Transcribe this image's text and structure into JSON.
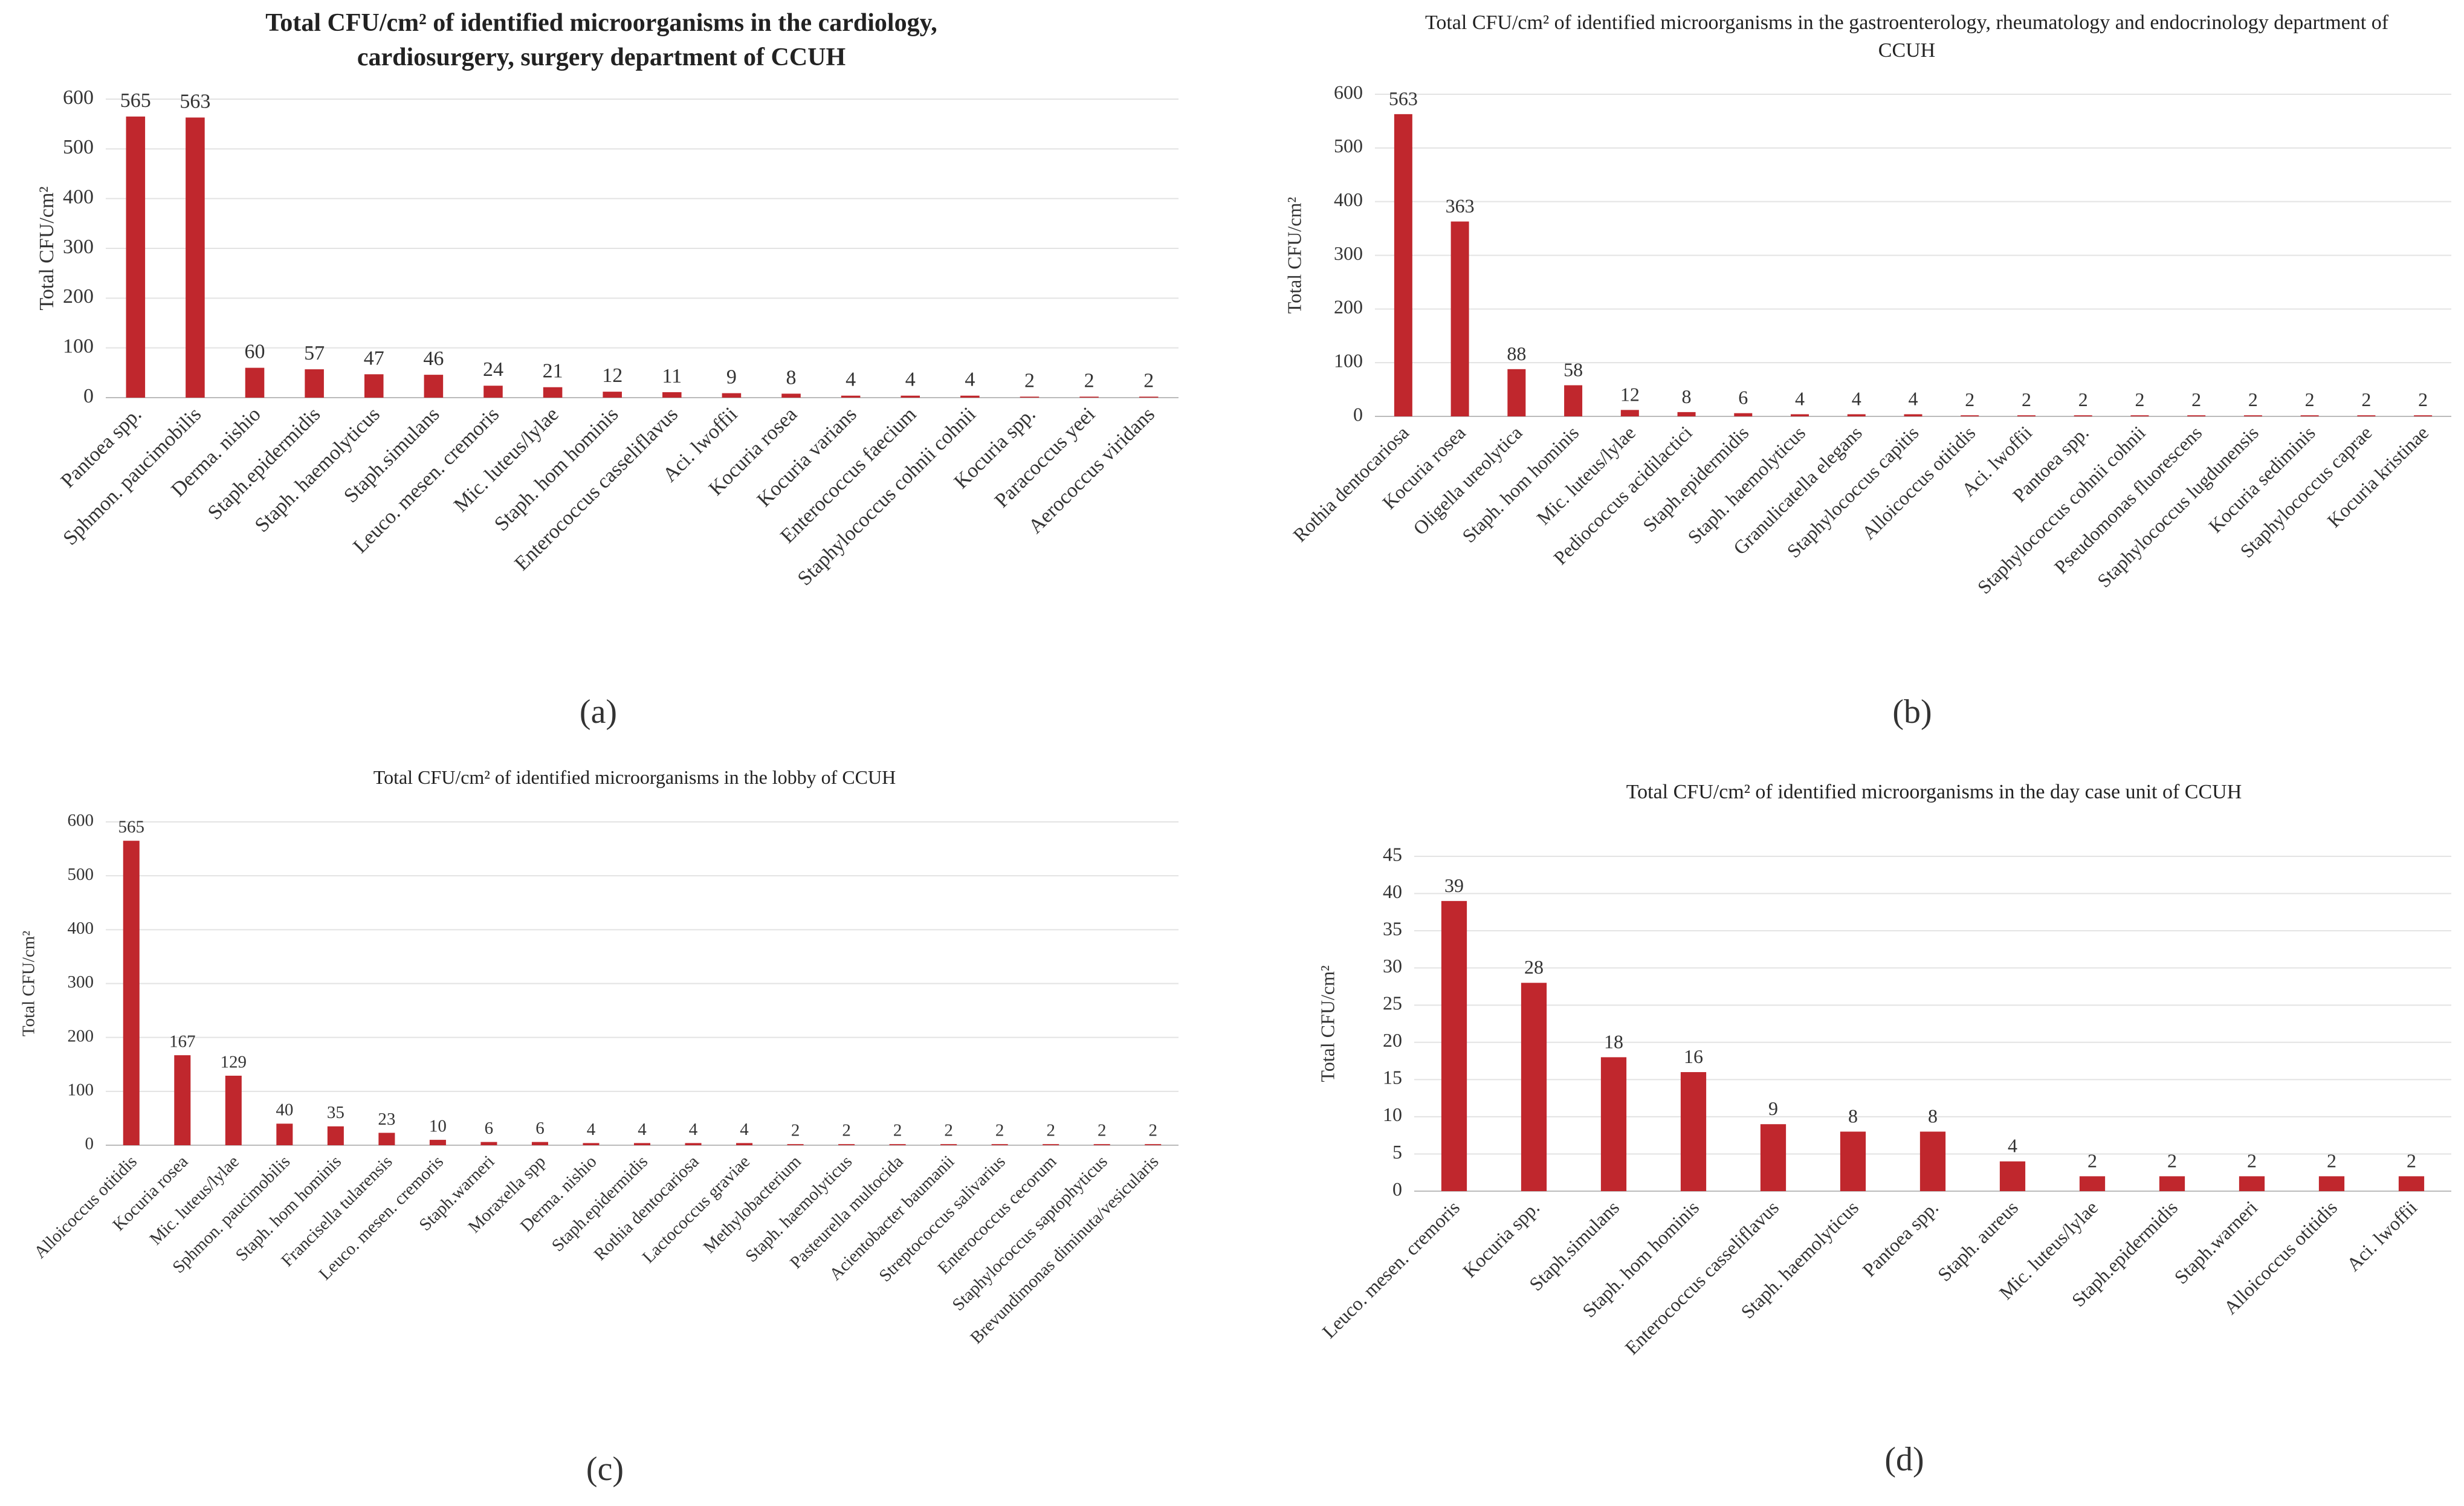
{
  "chart_data": [
    {
      "type": "bar",
      "label": "(a)",
      "title": "Total CFU/cm² of identified microorganisms in the cardiology, cardiosurgery, surgery department of CCUH",
      "ylabel": "Total CFU/cm²",
      "categories": [
        "Pantoea spp.",
        "Sphmon. paucimobilis",
        "Derma. nishio",
        "Staph.epidermidis",
        "Staph. haemolyticus",
        "Staph.simulans",
        "Leuco. mesen. cremoris",
        "Mic. luteus/lylae",
        "Staph. hom hominis",
        "Enterococcus casseliflavus",
        "Aci. lwoffii",
        "Kocuria rosea",
        "Kocuria varians",
        "Enterococcus faecium",
        "Staphylococcus cohnii cohnii",
        "Kocuria spp.",
        "Paracoccus yeei",
        "Aerococcus viridans"
      ],
      "values": [
        565,
        563,
        60,
        57,
        47,
        46,
        24,
        21,
        12,
        11,
        9,
        8,
        4,
        4,
        4,
        2,
        2,
        2
      ],
      "color": "#c0272d",
      "ylim": [
        0,
        600
      ],
      "yticks": [
        0,
        100,
        200,
        300,
        400,
        500,
        600
      ],
      "grid": true
    },
    {
      "type": "bar",
      "label": "(b)",
      "title": "Total CFU/cm² of identified microorganisms in the gastroenterology, rheumatology and endocrinology department of CCUH",
      "ylabel": "Total CFU/cm²",
      "categories": [
        "Rothia dentocariosa",
        "Kocuria rosea",
        "Oligella ureolytica",
        "Staph. hom hominis",
        "Mic. luteus/lylae",
        "Pediococcus acidilactici",
        "Staph.epidermidis",
        "Staph. haemolyticus",
        "Granulicatella elegans",
        "Staphylococcus capitis",
        "Alloicoccus otitidis",
        "Aci. lwoffii",
        "Pantoea spp.",
        "Staphylococcus cohnii cohnii",
        "Pseudomonas fluorescens",
        "Staphylococcus lugdunensis",
        "Kocuria sediminis",
        "Staphylococcus caprae",
        "Kocuria kristinae"
      ],
      "values": [
        563,
        363,
        88,
        58,
        12,
        8,
        6,
        4,
        4,
        4,
        2,
        2,
        2,
        2,
        2,
        2,
        2,
        2,
        2
      ],
      "color": "#c0272d",
      "ylim": [
        0,
        600
      ],
      "yticks": [
        0,
        100,
        200,
        300,
        400,
        500,
        600
      ],
      "grid": true
    },
    {
      "type": "bar",
      "label": "(c)",
      "title": "Total CFU/cm² of identified microorganisms in the lobby of CCUH",
      "ylabel": "Total CFU/cm²",
      "categories": [
        "Alloicoccus otitidis",
        "Kocuria rosea",
        "Mic. luteus/lylae",
        "Sphmon. paucimobilis",
        "Staph. hom hominis",
        "Francisella tularensis",
        "Leuco. mesen. cremoris",
        "Staph.warneri",
        "Moraxella spp",
        "Derma. nishio",
        "Staph.epidermidis",
        "Rothia dentocariosa",
        "Lactococcus graviae",
        "Methylobacterium",
        "Staph. haemolyticus",
        "Pasteurella multocida",
        "Acientobacter baumanii",
        "Streptococcus salivarius",
        "Enterococcus cecorum",
        "Staphylococcus saptophyticus",
        "Brevundimonas diminuta/vesicularis"
      ],
      "values": [
        565,
        167,
        129,
        40,
        35,
        23,
        10,
        6,
        6,
        4,
        4,
        4,
        4,
        2,
        2,
        2,
        2,
        2,
        2,
        2,
        2
      ],
      "color": "#c0272d",
      "ylim": [
        0,
        600
      ],
      "yticks": [
        0,
        100,
        200,
        300,
        400,
        500,
        600
      ],
      "grid": true
    },
    {
      "type": "bar",
      "label": "(d)",
      "title": "Total CFU/cm² of identified microorganisms in the day case unit of CCUH",
      "ylabel": "Total CFU/cm²",
      "categories": [
        "Leuco. mesen. cremoris",
        "Kocuria spp.",
        "Staph.simulans",
        "Staph. hom hominis",
        "Enterococcus casseliflavus",
        "Staph. haemolyticus",
        "Pantoea spp.",
        "Staph. aureus",
        "Mic. luteus/lylae",
        "Staph.epidermidis",
        "Staph.warneri",
        "Alloicoccus otitidis",
        "Aci. lwoffii"
      ],
      "values": [
        39,
        28,
        18,
        16,
        9,
        8,
        8,
        4,
        2,
        2,
        2,
        2,
        2
      ],
      "color": "#c0272d",
      "ylim": [
        0,
        45
      ],
      "yticks": [
        0,
        5,
        10,
        15,
        20,
        25,
        30,
        35,
        40,
        45
      ],
      "grid": true
    }
  ]
}
